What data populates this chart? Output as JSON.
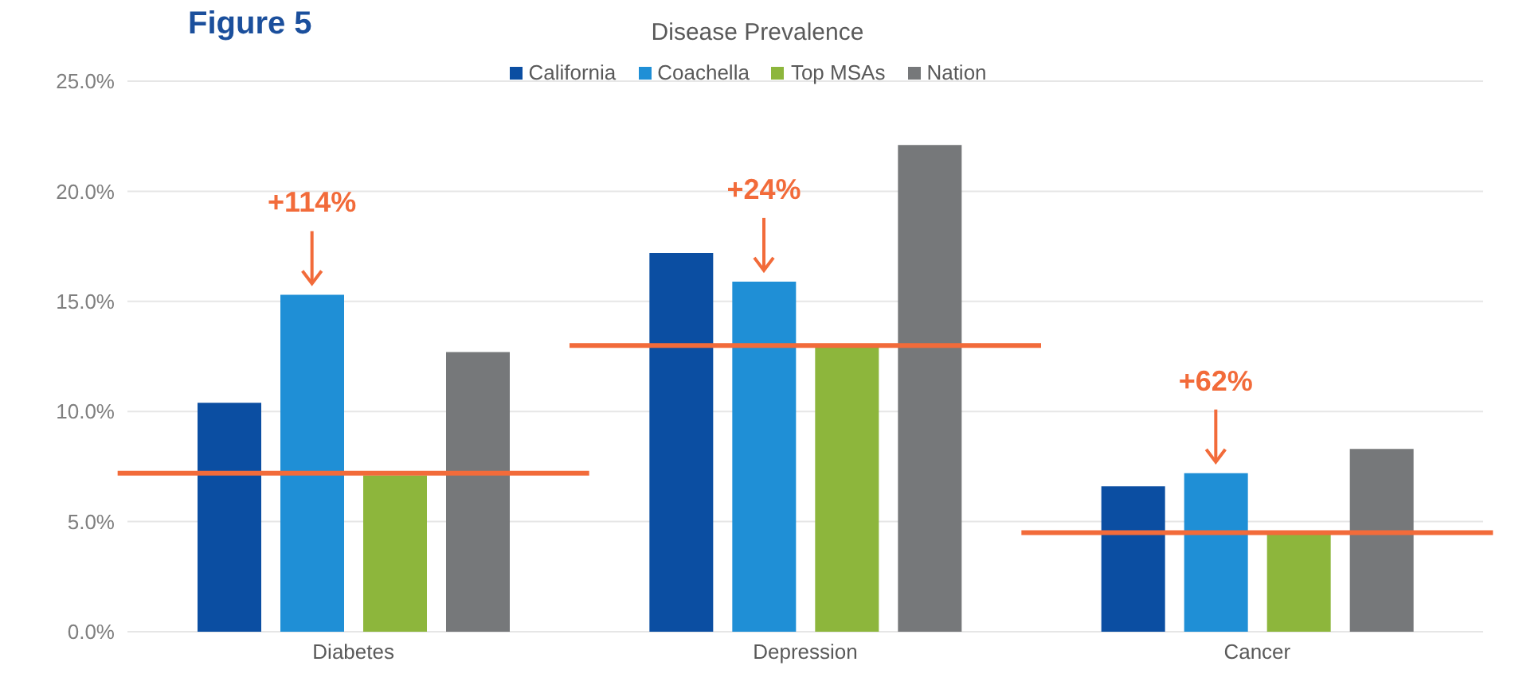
{
  "chart_data": {
    "type": "bar",
    "title": "Figure 5",
    "subtitle": "Disease Prevalence",
    "categories": [
      "Diabetes",
      "Depression",
      "Cancer"
    ],
    "series": [
      {
        "name": "California",
        "color": "#0b4ea2",
        "values": [
          10.4,
          17.2,
          6.6
        ]
      },
      {
        "name": "Coachella",
        "color": "#1f8fd6",
        "values": [
          15.3,
          15.9,
          7.2
        ]
      },
      {
        "name": "Top MSAs",
        "color": "#8db63c",
        "values": [
          7.1,
          13.0,
          4.5
        ]
      },
      {
        "name": "Nation",
        "color": "#76787a",
        "values": [
          12.7,
          22.1,
          8.3
        ]
      }
    ],
    "ylim": [
      0,
      25
    ],
    "yticks": [
      {
        "value": 0,
        "label": "0.0%"
      },
      {
        "value": 5,
        "label": "5.0%"
      },
      {
        "value": 10,
        "label": "10.0%"
      },
      {
        "value": 15,
        "label": "15.0%"
      },
      {
        "value": 20,
        "label": "20.0%"
      },
      {
        "value": 25,
        "label": "25.0%"
      }
    ],
    "grid": "y",
    "legend": "top",
    "ref_lines": [
      {
        "axis": "y",
        "value": 7.2,
        "color": "#f26b3a"
      },
      {
        "axis": "y",
        "value": 13.0,
        "color": "#f26b3a"
      },
      {
        "axis": "y",
        "value": 4.5,
        "color": "#f26b3a"
      }
    ],
    "annotations": [
      "+114%",
      "+24%",
      "+62%"
    ]
  }
}
